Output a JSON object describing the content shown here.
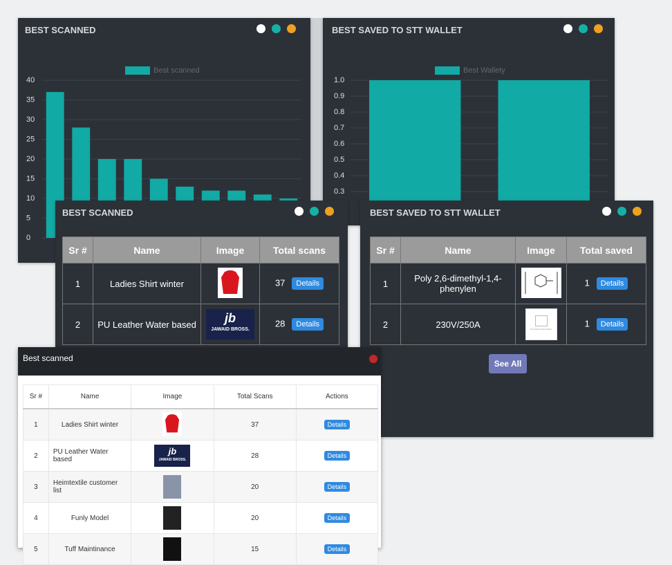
{
  "chart_data": [
    {
      "type": "bar",
      "title": "BEST SCANNED",
      "legend": "Best scanned",
      "categories": [
        null,
        null,
        null,
        null,
        null,
        null,
        null,
        null,
        null,
        null
      ],
      "values": [
        37,
        28,
        20,
        20,
        15,
        13,
        12,
        12,
        11,
        10
      ],
      "color": "#12aaa5",
      "ylim": [
        0,
        40
      ],
      "yticks": [
        0,
        5,
        10,
        15,
        20,
        25,
        30,
        35,
        40
      ],
      "grid": true
    },
    {
      "type": "bar",
      "title": "BEST SAVED TO STT WALLET",
      "legend": "Best Wallety",
      "categories": [
        null,
        null
      ],
      "values": [
        1,
        1
      ],
      "color": "#12aaa5",
      "ylim": [
        0,
        1
      ],
      "yticks": [
        {
          "value": 1,
          "label": "1.0"
        },
        0.9,
        0.8,
        0.7,
        0.6,
        0.5,
        0.4,
        0.3
      ],
      "grid": true
    }
  ],
  "tables": [
    {
      "title": "BEST SCANNED",
      "columns": [
        "Sr #",
        "Name",
        "Image",
        "Total scans"
      ],
      "rows": [
        [
          1,
          "Ladies Shirt winter",
          37
        ],
        [
          2,
          "PU Leather Water based",
          28
        ]
      ],
      "button": "Details",
      "logo_text": "JAWAID BROSS."
    },
    {
      "title": "BEST SAVED TO STT WALLET",
      "columns": [
        "Sr #",
        "Name",
        "Image",
        "Total saved"
      ],
      "rows": [
        [
          1,
          "Poly 2,6-dimethyl-1,4-phenylen",
          1
        ],
        [
          2,
          "230V/250A",
          1
        ]
      ],
      "button": "Details",
      "no_image_text": "NO IMAGE AVAILABLE",
      "see_all": "See All"
    }
  ],
  "modal": {
    "title": "Best scanned",
    "columns": [
      "Sr #",
      "Name",
      "Image",
      "Total Scans",
      "Actions"
    ],
    "rows": [
      [
        1,
        "Ladies Shirt winter",
        37
      ],
      [
        2,
        "PU Leather Water based",
        28
      ],
      [
        3,
        "Heimtextile customer list",
        20
      ],
      [
        4,
        "Funly Model",
        20
      ],
      [
        5,
        "Tuff Maintinance",
        15
      ]
    ],
    "button": "Details",
    "logo_text": "JAWAID BROSS."
  }
}
